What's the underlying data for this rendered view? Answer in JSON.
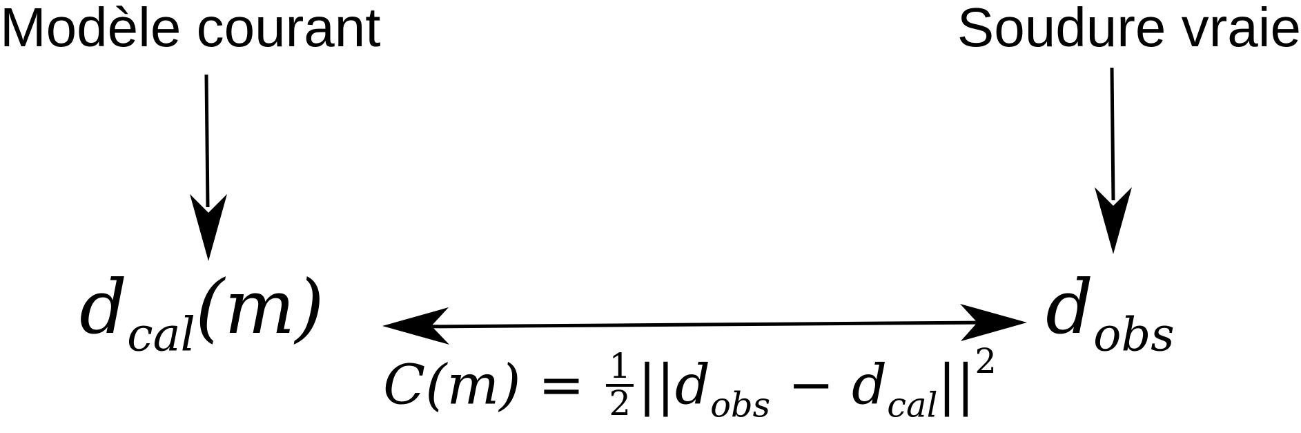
{
  "diagram": {
    "current_model_label": "Modèle courant",
    "true_weld_label": "Soudure vraie",
    "d_symbol": "d",
    "cal_subscript": "cal",
    "obs_subscript": "obs",
    "m_argument": "(m)",
    "cost": {
      "lhs": "C",
      "arg": "(m)",
      "equals": " = ",
      "frac_num": "1",
      "frac_den": "2",
      "norm_open": "||",
      "minus": " − ",
      "norm_close": "||",
      "exponent": "2"
    }
  }
}
